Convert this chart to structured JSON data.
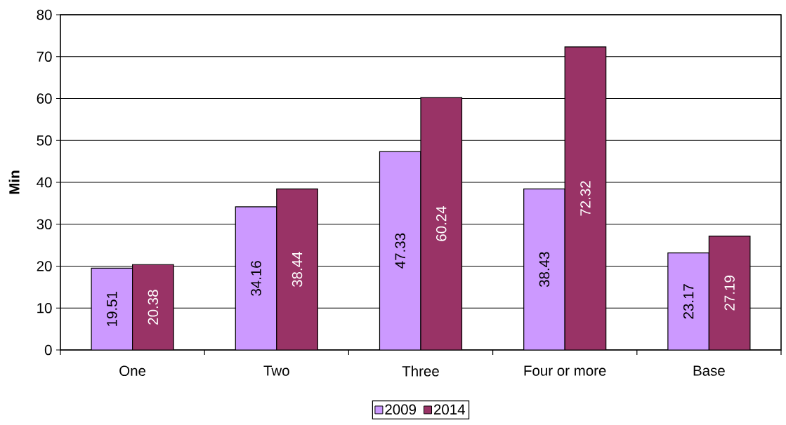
{
  "chart_data": {
    "type": "bar",
    "ylabel": "Min",
    "categories": [
      "One",
      "Two",
      "Three",
      "Four or more",
      "Base"
    ],
    "series": [
      {
        "name": "2009",
        "color": "#cc99ff",
        "values": [
          19.51,
          34.16,
          47.33,
          38.43,
          23.17
        ]
      },
      {
        "name": "2014",
        "color": "#993366",
        "values": [
          20.38,
          38.44,
          60.24,
          72.32,
          27.19
        ]
      }
    ],
    "ylim": [
      0,
      80
    ],
    "yticks": [
      0,
      10,
      20,
      30,
      40,
      50,
      60,
      70,
      80
    ],
    "grid": "y",
    "data_labels": true,
    "legend": "bottom"
  }
}
